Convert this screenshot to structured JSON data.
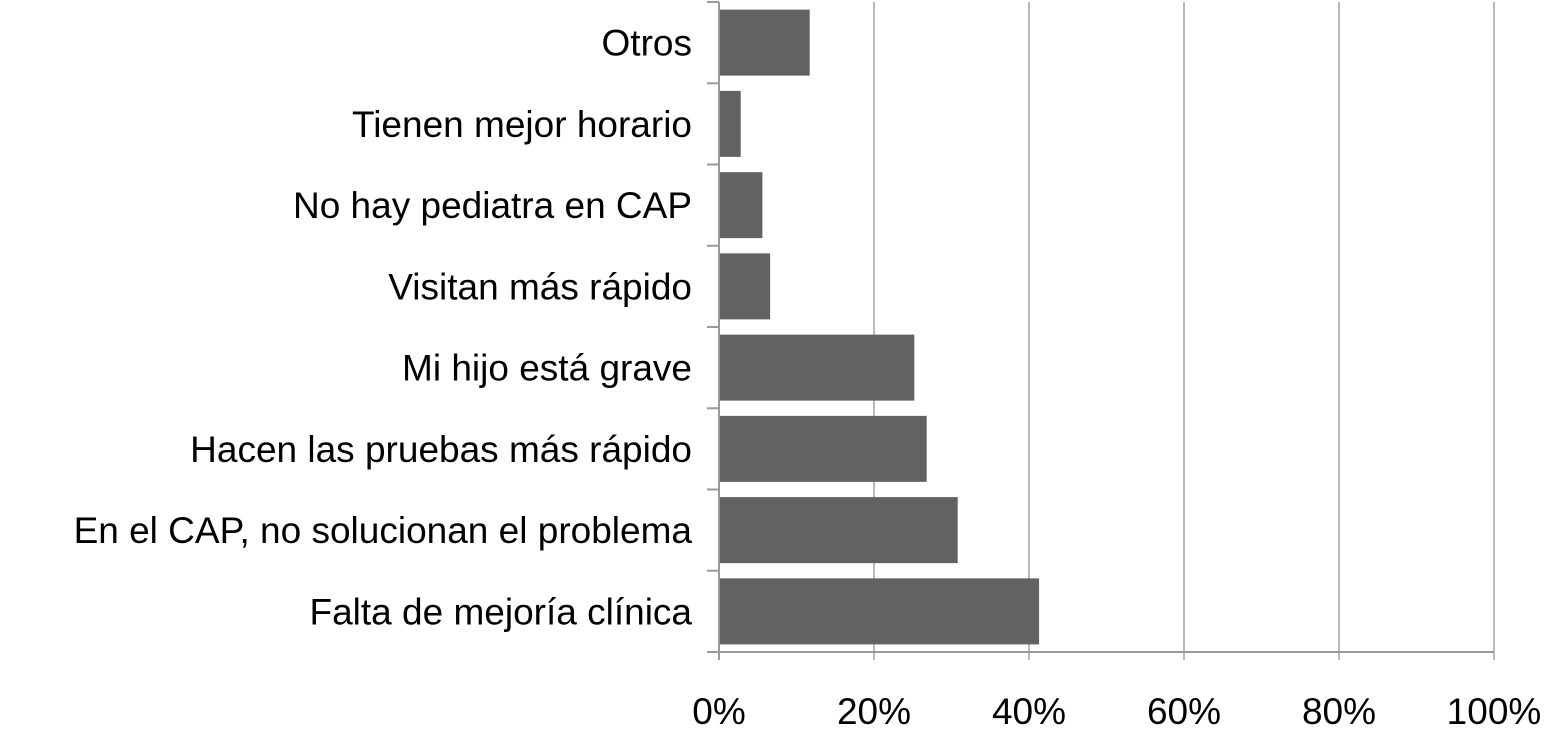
{
  "chart_data": {
    "type": "bar",
    "orientation": "horizontal",
    "title": "",
    "xlabel": "",
    "ylabel": "",
    "categories": [
      "Otros",
      "Tienen mejor horario",
      "No hay pediatra en CAP",
      "Visitan más rápido",
      "Mi hijo está grave",
      "Hacen las pruebas más rápido",
      "En el CAP, no solucionan el problema",
      "Falta de mejoría clínica"
    ],
    "values": [
      11.7,
      2.8,
      5.6,
      6.6,
      25.2,
      26.8,
      30.8,
      41.3
    ],
    "xlim": [
      0,
      100
    ],
    "xticks": [
      0,
      20,
      40,
      60,
      80,
      100
    ],
    "xtick_labels": [
      "0%",
      "20%",
      "40%",
      "60%",
      "80%",
      "100%"
    ],
    "grid": "vertical",
    "legend": "none",
    "colors": {
      "bar": "#626262",
      "grid": "#b9b9b9",
      "axis": "#9a9a9a",
      "text": "#000000"
    }
  }
}
